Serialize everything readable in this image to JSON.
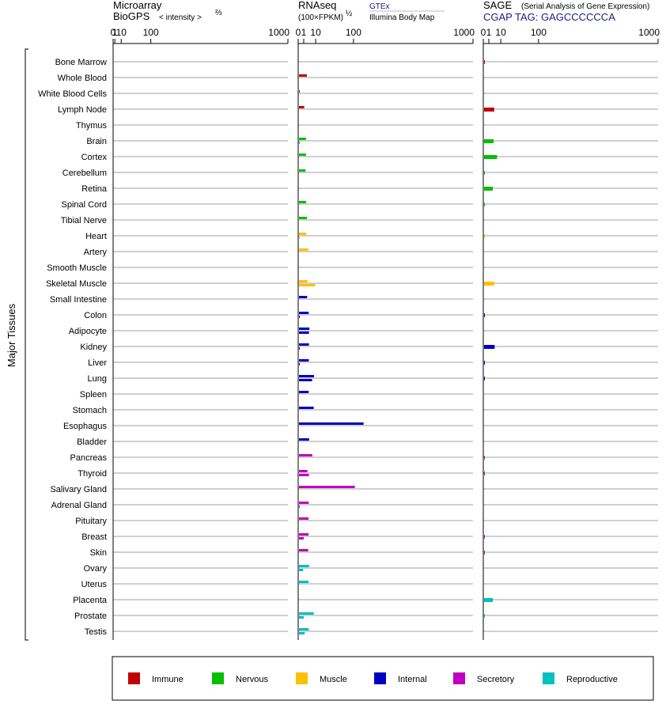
{
  "y_axis_label": "Major Tissues",
  "panels": [
    {
      "id": "microarray",
      "title_line1": "Microarray",
      "title_line2": "BioGPS",
      "scale_note": "< intensity >",
      "scale_exp": "⅔",
      "ticks": [
        "0",
        "1",
        "10",
        "100",
        "1000"
      ]
    },
    {
      "id": "rnaseq",
      "title_line1": "RNAseq",
      "title_line2": "(100×FPKM)",
      "scale_exp": "½",
      "source_top": "GTEx",
      "source_bottom": "Illumina Body Map",
      "ticks": [
        "0",
        "1",
        "10",
        "100",
        "1000"
      ]
    },
    {
      "id": "sage",
      "title_line1": "SAGE",
      "title_note": "(Serial Analysis of Gene Expression)",
      "title_line2": "CGAP  TAG: GAGCCCCCCA",
      "ticks": [
        "0",
        "1",
        "10",
        "100",
        "1000"
      ]
    }
  ],
  "legend": [
    {
      "label": "Immune",
      "color": "#c00000"
    },
    {
      "label": "Nervous",
      "color": "#00c000"
    },
    {
      "label": "Muscle",
      "color": "#ffc000"
    },
    {
      "label": "Internal",
      "color": "#0000c0"
    },
    {
      "label": "Secretory",
      "color": "#c000c0"
    },
    {
      "label": "Reproductive",
      "color": "#00c0c0"
    }
  ],
  "chart_data": {
    "type": "bar",
    "orientation": "horizontal",
    "x_scale": "power (microarray: value^2/3, RNAseq and SAGE: value^1/2)",
    "xlim": [
      0,
      1000
    ],
    "grid": true,
    "legend_position": "bottom",
    "categories": [
      "Bone Marrow",
      "Whole Blood",
      "White Blood Cells",
      "Lymph Node",
      "Thymus",
      "Brain",
      "Cortex",
      "Cerebellum",
      "Retina",
      "Spinal Cord",
      "Tibial Nerve",
      "Heart",
      "Artery",
      "Smooth Muscle",
      "Skeletal Muscle",
      "Small Intestine",
      "Colon",
      "Adipocyte",
      "Kidney",
      "Liver",
      "Lung",
      "Spleen",
      "Stomach",
      "Esophagus",
      "Bladder",
      "Pancreas",
      "Thyroid",
      "Salivary Gland",
      "Adrenal Gland",
      "Pituitary",
      "Breast",
      "Skin",
      "Ovary",
      "Uterus",
      "Placenta",
      "Prostate",
      "Testis"
    ],
    "groups": [
      "Immune",
      "Immune",
      "Immune",
      "Immune",
      "Immune",
      "Nervous",
      "Nervous",
      "Nervous",
      "Nervous",
      "Nervous",
      "Nervous",
      "Muscle",
      "Muscle",
      "Muscle",
      "Muscle",
      "Internal",
      "Internal",
      "Internal",
      "Internal",
      "Internal",
      "Internal",
      "Internal",
      "Internal",
      "Internal",
      "Internal",
      "Secretory",
      "Secretory",
      "Secretory",
      "Secretory",
      "Secretory",
      "Secretory",
      "Secretory",
      "Reproductive",
      "Reproductive",
      "Reproductive",
      "Reproductive",
      "Reproductive"
    ],
    "series": [
      {
        "name": "Microarray BioGPS",
        "values": [
          null,
          null,
          null,
          null,
          null,
          null,
          null,
          null,
          null,
          null,
          null,
          null,
          null,
          null,
          null,
          null,
          null,
          null,
          null,
          null,
          null,
          null,
          null,
          null,
          null,
          null,
          null,
          null,
          null,
          null,
          null,
          null,
          null,
          null,
          null,
          null,
          null
        ]
      },
      {
        "name": "GTEx",
        "values": [
          null,
          2.5,
          0.02,
          1.2,
          null,
          2,
          2,
          1.8,
          null,
          2.1,
          2.5,
          2.2,
          3.3,
          null,
          2.8,
          2.6,
          3.6,
          4.1,
          3.8,
          3.7,
          8.2,
          3.6,
          7.9,
          140,
          3.9,
          6.5,
          2.8,
          105,
          3.6,
          3.5,
          3.5,
          3.3,
          3.9,
          3.5,
          null,
          8,
          3.7
        ]
      },
      {
        "name": "Illumina Body Map",
        "values": [
          null,
          null,
          null,
          null,
          null,
          0.01,
          null,
          null,
          null,
          null,
          null,
          0.01,
          null,
          null,
          9.2,
          null,
          0.02,
          3.8,
          0.03,
          0.03,
          6.3,
          null,
          null,
          null,
          null,
          null,
          3.8,
          null,
          0.01,
          null,
          1,
          null,
          0.8,
          null,
          null,
          1,
          1.4
        ]
      },
      {
        "name": "SAGE",
        "values": [
          0.02,
          null,
          null,
          3.9,
          null,
          3.5,
          6.2,
          0.02,
          3,
          0.02,
          null,
          0.01,
          null,
          null,
          3.9,
          null,
          0.02,
          null,
          4.2,
          0.03,
          0.02,
          null,
          null,
          null,
          null,
          0.02,
          0.02,
          null,
          null,
          null,
          0.02,
          0.02,
          null,
          null,
          3,
          0.02,
          null
        ]
      }
    ]
  }
}
